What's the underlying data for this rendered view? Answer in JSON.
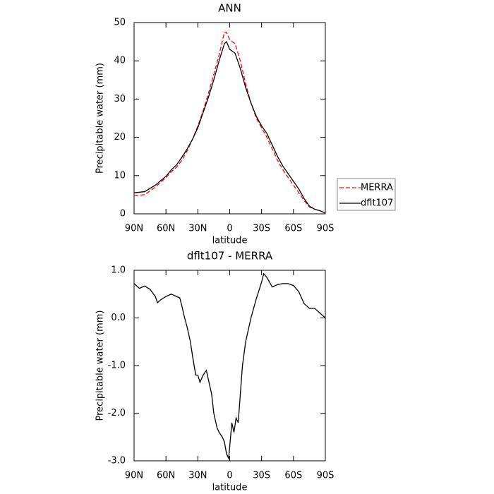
{
  "chart_data": [
    {
      "type": "line",
      "title": "ANN",
      "xlabel": "latitude",
      "ylabel": "Precipitable water (mm)",
      "x": [
        90,
        80,
        70,
        60,
        55,
        50,
        45,
        40,
        35,
        30,
        25,
        20,
        15,
        10,
        5,
        3,
        0,
        -5,
        -10,
        -15,
        -20,
        -25,
        -30,
        -35,
        -40,
        -45,
        -50,
        -55,
        -60,
        -65,
        -70,
        -75,
        -80,
        -85,
        -90
      ],
      "series": [
        {
          "name": "MERRA",
          "color": "#ff0000",
          "dash": true,
          "values": [
            4.8,
            5,
            7,
            9.5,
            11,
            12.2,
            14,
            16.5,
            19.5,
            23,
            27,
            31.5,
            36.5,
            41.5,
            47.5,
            47.5,
            45.5,
            44.5,
            40,
            34,
            29,
            25,
            22.5,
            20,
            17,
            14,
            11.5,
            9.5,
            7.5,
            5.5,
            3.5,
            1.8,
            1.2,
            0.8,
            0.2
          ]
        },
        {
          "name": "dflt107",
          "color": "#000000",
          "dash": false,
          "values": [
            5.5,
            5.8,
            7.5,
            9.8,
            11.5,
            12.8,
            14.8,
            17,
            19.5,
            22.5,
            26.5,
            30.5,
            35,
            40,
            44.5,
            45,
            43,
            42,
            38,
            33,
            29,
            25.5,
            23,
            21,
            18,
            15,
            12.5,
            10.5,
            8.5,
            6.5,
            4,
            2,
            1.2,
            0.8,
            0.2
          ]
        }
      ],
      "xlim": [
        90,
        -90
      ],
      "xticks": [
        {
          "value": 90,
          "label": "90N"
        },
        {
          "value": 60,
          "label": "60N"
        },
        {
          "value": 30,
          "label": "30N"
        },
        0,
        {
          "value": -30,
          "label": "30S"
        },
        {
          "value": -60,
          "label": "60S"
        },
        {
          "value": -90,
          "label": "90S"
        }
      ],
      "ylim": [
        0,
        50
      ],
      "yticks": [
        0,
        10,
        20,
        30,
        40,
        50
      ],
      "legend": "right"
    },
    {
      "type": "line",
      "title": "dflt107 - MERRA",
      "xlabel": "latitude",
      "ylabel": "Precipitable water (mm)",
      "x": [
        90,
        85,
        80,
        75,
        70,
        68,
        65,
        60,
        55,
        50,
        47,
        45,
        43,
        40,
        37,
        35,
        32,
        30,
        28,
        25,
        22,
        20,
        17,
        15,
        12,
        10,
        7,
        5,
        3,
        1,
        0,
        -2,
        -4,
        -6,
        -8,
        -10,
        -12,
        -15,
        -20,
        -25,
        -30,
        -32,
        -35,
        -40,
        -45,
        -50,
        -55,
        -60,
        -65,
        -70,
        -75,
        -80,
        -85,
        -90
      ],
      "series": [
        {
          "color": "#000000",
          "dash": false,
          "values": [
            0.72,
            0.62,
            0.67,
            0.6,
            0.45,
            0.32,
            0.38,
            0.45,
            0.5,
            0.45,
            0.42,
            0.25,
            0.05,
            -0.2,
            -0.5,
            -0.8,
            -1.2,
            -1.2,
            -1.35,
            -1.2,
            -1.1,
            -1.3,
            -1.6,
            -2.0,
            -2.3,
            -2.4,
            -2.5,
            -2.6,
            -2.85,
            -2.95,
            -2.7,
            -2.2,
            -2.4,
            -2.1,
            -2.2,
            -1.6,
            -1.0,
            -0.5,
            0.0,
            0.4,
            0.75,
            0.93,
            0.85,
            0.65,
            0.7,
            0.72,
            0.72,
            0.68,
            0.55,
            0.3,
            0.2,
            0.2,
            0.1,
            0.0
          ]
        }
      ],
      "xlim": [
        90,
        -90
      ],
      "xticks": [
        {
          "value": 90,
          "label": "90N"
        },
        {
          "value": 60,
          "label": "60N"
        },
        {
          "value": 30,
          "label": "30N"
        },
        0,
        {
          "value": -30,
          "label": "30S"
        },
        {
          "value": -60,
          "label": "60S"
        },
        {
          "value": -90,
          "label": "90S"
        }
      ],
      "ylim": [
        -3,
        1
      ],
      "yticks": [
        {
          "value": -3,
          "label": "-3.0"
        },
        {
          "value": -2,
          "label": "-2.0"
        },
        {
          "value": -1,
          "label": "-1.0"
        },
        {
          "value": 0,
          "label": "0.0"
        },
        {
          "value": 1,
          "label": "1.0"
        }
      ]
    }
  ]
}
